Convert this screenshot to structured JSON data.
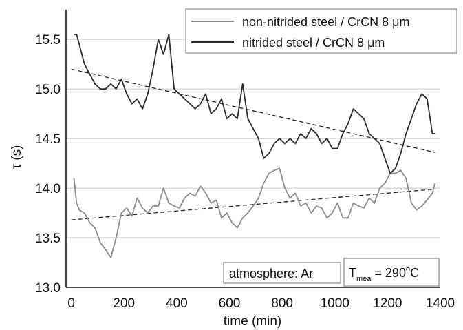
{
  "chart_data": {
    "type": "line",
    "title": "",
    "xlabel": "time (min)",
    "ylabel": "τ (s)",
    "xlim": [
      -20,
      1400
    ],
    "ylim": [
      13.0,
      15.8
    ],
    "xticks": [
      0,
      200,
      400,
      600,
      800,
      1000,
      1200,
      1400
    ],
    "yticks": [
      13.0,
      13.5,
      14.0,
      14.5,
      15.0,
      15.5
    ],
    "xtick_labels": [
      "0",
      "200",
      "400",
      "600",
      "800",
      "1000",
      "1200",
      "1400"
    ],
    "ytick_labels": [
      "13.0",
      "13.5",
      "14.0",
      "14.5",
      "15.0",
      "15.5"
    ],
    "grid": "horizontal",
    "legend_position": "top-right",
    "series": [
      {
        "name": "non-nitrided steel / CrCN 8 μm",
        "color": "#8c8c8c",
        "x": [
          10,
          20,
          30,
          50,
          70,
          90,
          110,
          130,
          150,
          170,
          190,
          210,
          230,
          250,
          270,
          290,
          310,
          330,
          350,
          370,
          390,
          410,
          430,
          450,
          470,
          490,
          510,
          530,
          550,
          570,
          590,
          610,
          630,
          650,
          670,
          690,
          710,
          730,
          750,
          770,
          790,
          810,
          830,
          850,
          870,
          890,
          910,
          930,
          950,
          970,
          990,
          1010,
          1030,
          1050,
          1070,
          1090,
          1110,
          1130,
          1150,
          1170,
          1190,
          1210,
          1230,
          1250,
          1270,
          1290,
          1310,
          1330,
          1350,
          1370,
          1380
        ],
        "y": [
          14.1,
          13.85,
          13.78,
          13.75,
          13.65,
          13.6,
          13.45,
          13.38,
          13.3,
          13.5,
          13.75,
          13.8,
          13.72,
          13.9,
          13.8,
          13.75,
          13.82,
          13.82,
          14.0,
          13.85,
          13.82,
          13.8,
          13.9,
          13.95,
          13.92,
          14.02,
          13.95,
          13.85,
          13.88,
          13.7,
          13.75,
          13.65,
          13.6,
          13.7,
          13.75,
          13.82,
          13.9,
          14.05,
          14.15,
          14.18,
          14.2,
          14.0,
          13.9,
          13.95,
          13.82,
          13.85,
          13.75,
          13.82,
          13.8,
          13.7,
          13.75,
          13.85,
          13.7,
          13.7,
          13.85,
          13.82,
          13.8,
          13.9,
          13.85,
          14.0,
          14.05,
          14.15,
          14.15,
          14.18,
          14.1,
          13.85,
          13.78,
          13.82,
          13.88,
          13.95,
          14.05
        ]
      },
      {
        "name": "nitrided steel / CrCN 8 μm",
        "color": "#2b2b2b",
        "x": [
          10,
          20,
          30,
          50,
          70,
          90,
          110,
          130,
          150,
          170,
          190,
          210,
          230,
          250,
          270,
          290,
          310,
          330,
          350,
          370,
          390,
          410,
          430,
          450,
          470,
          490,
          510,
          530,
          550,
          570,
          590,
          610,
          630,
          650,
          670,
          690,
          710,
          730,
          750,
          770,
          790,
          810,
          830,
          850,
          870,
          890,
          910,
          930,
          950,
          970,
          990,
          1010,
          1030,
          1050,
          1070,
          1090,
          1110,
          1130,
          1150,
          1170,
          1190,
          1210,
          1230,
          1250,
          1270,
          1290,
          1310,
          1330,
          1350,
          1370,
          1380
        ],
        "y": [
          15.55,
          15.55,
          15.45,
          15.25,
          15.15,
          15.05,
          15.0,
          15.0,
          15.05,
          15.0,
          15.1,
          14.95,
          14.85,
          14.9,
          14.8,
          14.95,
          15.2,
          15.5,
          15.35,
          15.55,
          15.0,
          14.95,
          14.9,
          14.85,
          14.8,
          14.85,
          14.95,
          14.75,
          14.8,
          14.9,
          14.7,
          14.75,
          14.7,
          15.05,
          14.7,
          14.6,
          14.5,
          14.3,
          14.35,
          14.45,
          14.5,
          14.45,
          14.5,
          14.45,
          14.55,
          14.5,
          14.6,
          14.55,
          14.45,
          14.5,
          14.4,
          14.4,
          14.55,
          14.65,
          14.8,
          14.75,
          14.7,
          14.55,
          14.5,
          14.45,
          14.3,
          14.15,
          14.2,
          14.35,
          14.55,
          14.7,
          14.85,
          14.95,
          14.9,
          14.55,
          14.55
        ]
      }
    ],
    "trendlines": [
      {
        "series": "nitrided steel / CrCN 8 μm",
        "x": [
          0,
          1380
        ],
        "y": [
          15.2,
          14.36
        ]
      },
      {
        "series": "non-nitrided steel / CrCN 8 μm",
        "x": [
          0,
          1380
        ],
        "y": [
          13.68,
          13.99
        ]
      }
    ],
    "annotations": [
      {
        "text": "atmosphere: Ar"
      },
      {
        "main_prefix": "T",
        "subscript": "mea",
        "main_suffix": " = 290",
        "superscript": "o",
        "tail": "C"
      }
    ]
  }
}
